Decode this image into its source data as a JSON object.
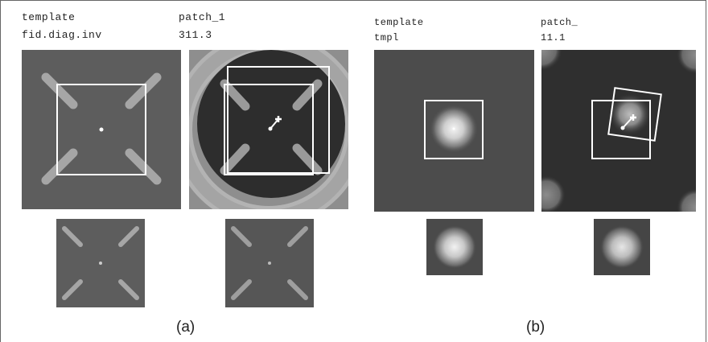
{
  "panel_a": {
    "col1_title": "template",
    "col1_sub": "fid.diag.inv",
    "col2_title": "patch_1",
    "col2_sub": "311.3",
    "caption": "(a)"
  },
  "panel_b": {
    "col1_title": "template",
    "col1_sub": "tmpl",
    "col2_title": "patch_",
    "col2_sub": "11.1",
    "caption": "(b)"
  }
}
